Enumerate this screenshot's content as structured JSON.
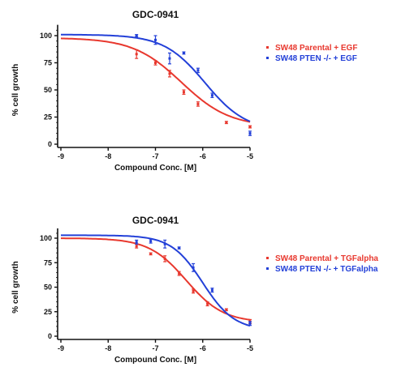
{
  "colors": {
    "red": "#e8382e",
    "blue": "#2340d8",
    "axis": "#111111"
  },
  "chart_data": [
    {
      "type": "line",
      "title": "GDC-0941",
      "xlabel": "Compound Conc. [M]",
      "ylabel": "% cell growth",
      "xlim": [
        -9,
        -5
      ],
      "ylim": [
        0,
        110
      ],
      "xticks": [
        -9,
        -8,
        -7,
        -6,
        -5
      ],
      "yticks": [
        0,
        25,
        50,
        75,
        100
      ],
      "x_tick_labels": [
        "-9",
        "-8",
        "-7",
        "-6",
        "-5"
      ],
      "y_tick_labels": [
        "0",
        "25",
        "50",
        "75",
        "100"
      ],
      "legend_position": "right",
      "series": [
        {
          "name": "SW48 Parental + EGF",
          "color": "#e8382e",
          "fit": {
            "top": 98,
            "bottom": 16,
            "logEC50": -6.45,
            "hill": 0.85
          },
          "points": [
            {
              "x": -7.4,
              "y": 83,
              "err": 4
            },
            {
              "x": -7.0,
              "y": 75,
              "err": 2
            },
            {
              "x": -6.7,
              "y": 65,
              "err": 3
            },
            {
              "x": -6.4,
              "y": 48,
              "err": 2
            },
            {
              "x": -6.1,
              "y": 37,
              "err": 2
            },
            {
              "x": -5.5,
              "y": 20,
              "err": 1
            },
            {
              "x": -5.0,
              "y": 16,
              "err": 1
            }
          ]
        },
        {
          "name": "SW48 PTEN -/- + EGF",
          "color": "#2340d8",
          "fit": {
            "top": 101,
            "bottom": 12,
            "logEC50": -5.95,
            "hill": 1.0
          },
          "points": [
            {
              "x": -7.4,
              "y": 100,
              "err": 1
            },
            {
              "x": -7.0,
              "y": 96,
              "err": 4
            },
            {
              "x": -6.7,
              "y": 79,
              "err": 5
            },
            {
              "x": -6.4,
              "y": 84,
              "err": 1
            },
            {
              "x": -6.1,
              "y": 68,
              "err": 2
            },
            {
              "x": -5.8,
              "y": 45,
              "err": 2
            },
            {
              "x": -5.0,
              "y": 10,
              "err": 2
            }
          ]
        }
      ]
    },
    {
      "type": "line",
      "title": "GDC-0941",
      "xlabel": "Compound Conc. [M]",
      "ylabel": "% cell growth",
      "xlim": [
        -9,
        -5
      ],
      "ylim": [
        0,
        110
      ],
      "xticks": [
        -9,
        -8,
        -7,
        -6,
        -5
      ],
      "yticks": [
        0,
        25,
        50,
        75,
        100
      ],
      "x_tick_labels": [
        "-9",
        "-8",
        "-7",
        "-6",
        "-5"
      ],
      "y_tick_labels": [
        "0",
        "25",
        "50",
        "75",
        "100"
      ],
      "legend_position": "right",
      "series": [
        {
          "name": "SW48 Parental + TGFalpha",
          "color": "#e8382e",
          "fit": {
            "top": 100,
            "bottom": 14,
            "logEC50": -6.35,
            "hill": 1.1
          },
          "points": [
            {
              "x": -7.4,
              "y": 92,
              "err": 2
            },
            {
              "x": -7.1,
              "y": 84,
              "err": 1
            },
            {
              "x": -6.8,
              "y": 79,
              "err": 3
            },
            {
              "x": -6.5,
              "y": 64,
              "err": 2
            },
            {
              "x": -6.2,
              "y": 46,
              "err": 2
            },
            {
              "x": -5.9,
              "y": 33,
              "err": 2
            },
            {
              "x": -5.5,
              "y": 27,
              "err": 1
            },
            {
              "x": -5.0,
              "y": 15,
              "err": 2
            }
          ]
        },
        {
          "name": "SW48 PTEN -/- + TGFalpha",
          "color": "#2340d8",
          "fit": {
            "top": 103,
            "bottom": 6,
            "logEC50": -6.0,
            "hill": 1.3
          },
          "points": [
            {
              "x": -7.4,
              "y": 96,
              "err": 2
            },
            {
              "x": -7.1,
              "y": 97,
              "err": 2
            },
            {
              "x": -6.8,
              "y": 94,
              "err": 4
            },
            {
              "x": -6.5,
              "y": 90,
              "err": 1
            },
            {
              "x": -6.2,
              "y": 70,
              "err": 4
            },
            {
              "x": -5.8,
              "y": 47,
              "err": 2
            },
            {
              "x": -5.0,
              "y": 13,
              "err": 2
            }
          ]
        }
      ]
    }
  ]
}
